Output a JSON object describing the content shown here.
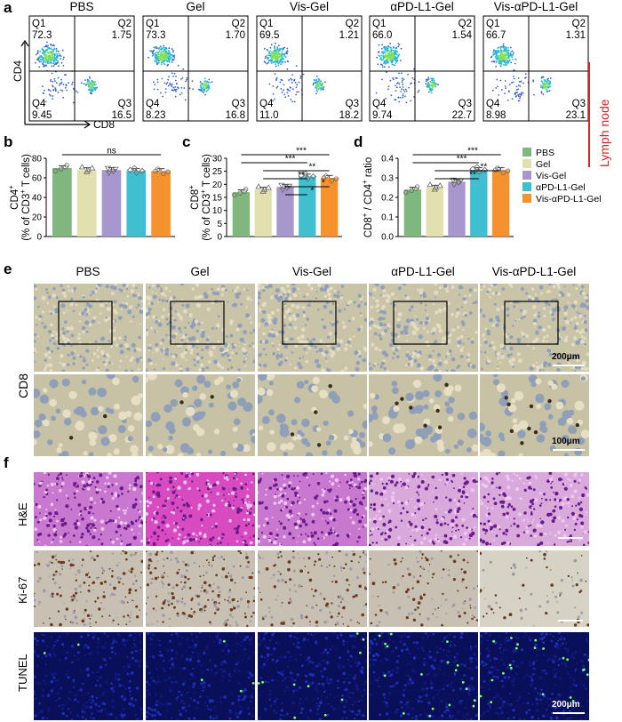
{
  "panel_letters": {
    "a": "a",
    "b": "b",
    "c": "c",
    "d": "d",
    "e": "e",
    "f": "f"
  },
  "groups": [
    "PBS",
    "Gel",
    "Vis-Gel",
    "αPD-L1-Gel",
    "Vis-αPD-L1-Gel"
  ],
  "flow": {
    "x_axis": "CD8",
    "y_axis": "CD4",
    "side_label": "Lymph node",
    "quadrant_names": [
      "Q1",
      "Q2",
      "Q3",
      "Q4"
    ],
    "plots": [
      {
        "group": "PBS",
        "q1": "72.3",
        "q2": "1.75",
        "q3": "16.5",
        "q4": "9.45"
      },
      {
        "group": "Gel",
        "q1": "73.3",
        "q2": "1.70",
        "q3": "16.8",
        "q4": "8.23"
      },
      {
        "group": "Vis-Gel",
        "q1": "69.5",
        "q2": "1.21",
        "q3": "18.2",
        "q4": "11.0"
      },
      {
        "group": "αPD-L1-Gel",
        "q1": "66.0",
        "q2": "1.54",
        "q3": "22.7",
        "q4": "9.74"
      },
      {
        "group": "Vis-αPD-L1-Gel",
        "q1": "66.7",
        "q2": "1.31",
        "q3": "23.1",
        "q4": "8.98"
      }
    ]
  },
  "colors": {
    "PBS": "#7fb77e",
    "Gel": "#e3e0b0",
    "Vis-Gel": "#a897cc",
    "αPD-L1-Gel": "#3fbfcf",
    "Vis-αPD-L1-Gel": "#f6922e",
    "side_bar": "#e02020"
  },
  "chart_data": [
    {
      "panel": "b",
      "type": "bar",
      "categories": [
        "PBS",
        "Gel",
        "Vis-Gel",
        "αPD-L1-Gel",
        "Vis-αPD-L1-Gel"
      ],
      "values": [
        70,
        68,
        68,
        67,
        67
      ],
      "ylabel_line1": "CD4",
      "ylabel_sup": "+",
      "ylabel_line2": "(% of CD3",
      "ylabel_line2_sup": "+",
      "ylabel_line2_end": " T cells)",
      "ylim": [
        0,
        80
      ],
      "yticks": [
        "0",
        "20",
        "40",
        "60",
        "80"
      ],
      "significance": [
        {
          "from": 0,
          "to": 4,
          "label": "ns"
        }
      ]
    },
    {
      "panel": "c",
      "type": "bar",
      "categories": [
        "PBS",
        "Gel",
        "Vis-Gel",
        "αPD-L1-Gel",
        "Vis-αPD-L1-Gel"
      ],
      "values": [
        17,
        18,
        19,
        23,
        22.5
      ],
      "ylabel_line1": "CD8",
      "ylabel_sup": "+",
      "ylabel_line2": "(% of CD3",
      "ylabel_line2_sup": "+",
      "ylabel_line2_end": " T cells)",
      "ylim": [
        0,
        30
      ],
      "yticks": [
        "0",
        "5",
        "10",
        "15",
        "20",
        "25",
        "30"
      ],
      "significance": [
        {
          "from": 0,
          "to": 4,
          "label": "***"
        },
        {
          "from": 0,
          "to": 3,
          "label": "***"
        },
        {
          "from": 1,
          "to": 4,
          "label": "**"
        },
        {
          "from": 1,
          "to": 3,
          "label": "**"
        },
        {
          "from": 2,
          "to": 4,
          "label": "*"
        },
        {
          "from": 2,
          "to": 3,
          "label": "*"
        }
      ]
    },
    {
      "panel": "d",
      "type": "bar",
      "categories": [
        "PBS",
        "Gel",
        "Vis-Gel",
        "αPD-L1-Gel",
        "Vis-αPD-L1-Gel"
      ],
      "values": [
        0.24,
        0.25,
        0.28,
        0.34,
        0.34
      ],
      "ylabel": "CD8",
      "ylabel_sup": "+",
      "ylabel_mid": " / CD4",
      "ylabel_sup2": "+",
      "ylabel_end": " ratio",
      "ylim": [
        0,
        0.4
      ],
      "yticks": [
        "0.0",
        "0.1",
        "0.2",
        "0.3",
        "0.4"
      ],
      "significance": [
        {
          "from": 0,
          "to": 4,
          "label": "***"
        },
        {
          "from": 0,
          "to": 3,
          "label": "***"
        },
        {
          "from": 1,
          "to": 4,
          "label": "**"
        },
        {
          "from": 1,
          "to": 3,
          "label": "**"
        }
      ]
    }
  ],
  "legend": [
    "PBS",
    "Gel",
    "Vis-Gel",
    "αPD-L1-Gel",
    "Vis-αPD-L1-Gel"
  ],
  "histology": {
    "cd8_label": "CD8",
    "scale_200": "200μm",
    "scale_100": "100μm",
    "rows": [
      "H&E",
      "Ki-67",
      "TUNEL"
    ],
    "scale_f": "200μm"
  }
}
